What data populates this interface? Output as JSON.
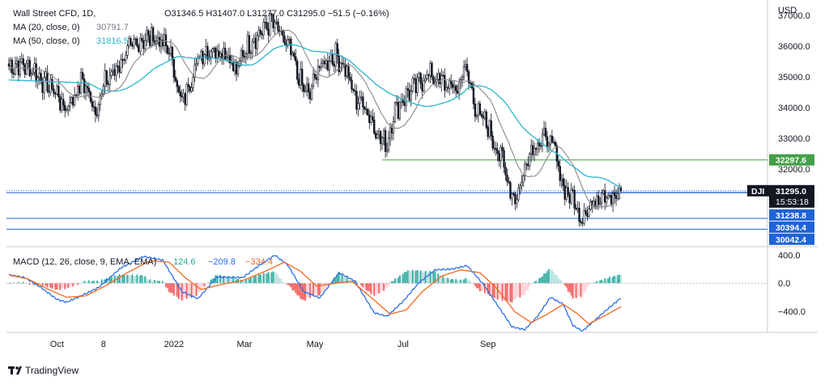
{
  "header": {
    "symbol": "Wall Street CFD, 1D,",
    "ohlc": "O31346.5  H31407.0  L31277.0  C31295.0  −51.5 (−0.16%)",
    "ma20_label": "MA (20, close, 0)",
    "ma20_value": "30791.7",
    "ma50_label": "MA (50, close, 0)",
    "ma50_value": "31816.5"
  },
  "currency": "USD",
  "price_axis": {
    "ticks": [
      37000,
      36000,
      35000,
      34000,
      33000,
      32000
    ],
    "tick_labels": [
      "37000.0",
      "36000.0",
      "35000.0",
      "34000.0",
      "33000.0",
      "32000.0"
    ]
  },
  "macd_axis": {
    "ticks": [
      400,
      0,
      -400
    ],
    "tick_labels": [
      "400.0",
      "0.0",
      "−400.0"
    ]
  },
  "time_axis": {
    "labels": [
      "Oct",
      "8",
      "2022",
      "Mar",
      "May",
      "Jul",
      "Sep"
    ]
  },
  "price_labels": [
    {
      "value": 32297.6,
      "text": "32297.6",
      "color": "#43a047",
      "kind": "level"
    },
    {
      "value": 31238.8,
      "text": "31238.8",
      "color": "#1e63d6",
      "kind": "level"
    },
    {
      "value": 30394.4,
      "text": "30394.4",
      "color": "#1e63d6",
      "kind": "level"
    },
    {
      "value": 30042.4,
      "text": "30042.4",
      "color": "#1e63d6",
      "kind": "level"
    }
  ],
  "current_price": {
    "ticker": "DJI",
    "price": "31295.0",
    "countdown": "15:53:18",
    "value": 31295.0
  },
  "macd_header": {
    "label": "MACD (12, 26, close, 9, EMA, EMA)",
    "hist": "124.6",
    "macd": "−209.8",
    "signal": "−334.4"
  },
  "footer": {
    "brand": "TradingView"
  },
  "colors": {
    "candle": "#131722",
    "ma20": "#8a8a8a",
    "ma50": "#26b6cf",
    "macd_line": "#2a6ee8",
    "signal_line": "#f2691f",
    "hist_pos_strong": "#26a69a",
    "hist_pos_weak": "#b2dfdb",
    "hist_neg_strong": "#ef5350",
    "hist_neg_weak": "#ffcdd2",
    "level_green": "#43a047",
    "level_blue": "#1e63d6"
  },
  "chart_data": {
    "type": "candlestick",
    "title": "Wall Street CFD, 1D",
    "ylabel": "USD",
    "ylim": [
      29500,
      37500
    ],
    "macd_ylim": [
      -700,
      520
    ],
    "series": [
      {
        "name": "MA (20, close, 0)"
      },
      {
        "name": "MA (50, close, 0)"
      },
      {
        "name": "MACD (12, 26, close, 9, EMA, EMA)"
      }
    ],
    "close_path": [
      [
        0,
        35350
      ],
      [
        8,
        35400
      ],
      [
        16,
        35200
      ],
      [
        22,
        34800
      ],
      [
        30,
        34500
      ],
      [
        34,
        33950
      ],
      [
        40,
        34300
      ],
      [
        46,
        34900
      ],
      [
        50,
        34400
      ],
      [
        54,
        33900
      ],
      [
        60,
        34800
      ],
      [
        66,
        35200
      ],
      [
        74,
        35800
      ],
      [
        82,
        36200
      ],
      [
        90,
        36300
      ],
      [
        100,
        35900
      ],
      [
        104,
        35000
      ],
      [
        108,
        34100
      ],
      [
        114,
        35000
      ],
      [
        120,
        35800
      ],
      [
        128,
        35900
      ],
      [
        136,
        35800
      ],
      [
        142,
        35100
      ],
      [
        146,
        35800
      ],
      [
        152,
        36200
      ],
      [
        158,
        36500
      ],
      [
        164,
        36800
      ],
      [
        170,
        36300
      ],
      [
        176,
        35800
      ],
      [
        180,
        35100
      ],
      [
        184,
        34600
      ],
      [
        188,
        34400
      ],
      [
        192,
        35200
      ],
      [
        198,
        35500
      ],
      [
        204,
        35700
      ],
      [
        210,
        35300
      ],
      [
        216,
        34300
      ],
      [
        222,
        34100
      ],
      [
        228,
        33400
      ],
      [
        232,
        33000
      ],
      [
        236,
        32800
      ],
      [
        240,
        33800
      ],
      [
        246,
        34300
      ],
      [
        254,
        34700
      ],
      [
        262,
        35100
      ],
      [
        268,
        34900
      ],
      [
        274,
        34700
      ],
      [
        280,
        34600
      ],
      [
        284,
        35300
      ],
      [
        288,
        34800
      ],
      [
        292,
        33800
      ],
      [
        298,
        33500
      ],
      [
        304,
        32700
      ],
      [
        308,
        32300
      ],
      [
        312,
        31500
      ],
      [
        316,
        31000
      ],
      [
        320,
        31600
      ],
      [
        324,
        32500
      ],
      [
        330,
        32900
      ],
      [
        336,
        33000
      ],
      [
        340,
        32700
      ],
      [
        344,
        31800
      ],
      [
        348,
        31200
      ],
      [
        352,
        31100
      ],
      [
        356,
        30400
      ],
      [
        360,
        30700
      ],
      [
        364,
        30800
      ],
      [
        370,
        31300
      ],
      [
        374,
        31200
      ],
      [
        378,
        31000
      ],
      [
        382,
        31300
      ]
    ],
    "macd_path": [
      [
        0,
        120
      ],
      [
        10,
        80
      ],
      [
        20,
        -60
      ],
      [
        30,
        -230
      ],
      [
        36,
        -270
      ],
      [
        46,
        -170
      ],
      [
        56,
        -60
      ],
      [
        70,
        220
      ],
      [
        84,
        380
      ],
      [
        96,
        330
      ],
      [
        108,
        -120
      ],
      [
        118,
        -220
      ],
      [
        130,
        90
      ],
      [
        146,
        80
      ],
      [
        156,
        250
      ],
      [
        166,
        400
      ],
      [
        174,
        260
      ],
      [
        184,
        -120
      ],
      [
        194,
        -210
      ],
      [
        206,
        150
      ],
      [
        216,
        30
      ],
      [
        228,
        -420
      ],
      [
        236,
        -470
      ],
      [
        246,
        -260
      ],
      [
        256,
        10
      ],
      [
        266,
        190
      ],
      [
        276,
        200
      ],
      [
        286,
        250
      ],
      [
        296,
        -10
      ],
      [
        304,
        -280
      ],
      [
        314,
        -620
      ],
      [
        322,
        -660
      ],
      [
        330,
        -470
      ],
      [
        338,
        -200
      ],
      [
        346,
        -300
      ],
      [
        352,
        -600
      ],
      [
        358,
        -680
      ],
      [
        366,
        -520
      ],
      [
        374,
        -360
      ],
      [
        382,
        -210
      ]
    ],
    "signal_path": [
      [
        0,
        120
      ],
      [
        12,
        60
      ],
      [
        24,
        -80
      ],
      [
        36,
        -200
      ],
      [
        48,
        -180
      ],
      [
        60,
        -40
      ],
      [
        74,
        150
      ],
      [
        88,
        320
      ],
      [
        100,
        300
      ],
      [
        110,
        80
      ],
      [
        120,
        -90
      ],
      [
        132,
        -20
      ],
      [
        146,
        40
      ],
      [
        160,
        170
      ],
      [
        172,
        300
      ],
      [
        182,
        170
      ],
      [
        192,
        -40
      ],
      [
        204,
        0
      ],
      [
        214,
        30
      ],
      [
        226,
        -200
      ],
      [
        238,
        -440
      ],
      [
        248,
        -380
      ],
      [
        258,
        -120
      ],
      [
        270,
        100
      ],
      [
        282,
        190
      ],
      [
        294,
        150
      ],
      [
        304,
        -60
      ],
      [
        316,
        -410
      ],
      [
        326,
        -560
      ],
      [
        336,
        -440
      ],
      [
        346,
        -300
      ],
      [
        354,
        -420
      ],
      [
        362,
        -580
      ],
      [
        372,
        -460
      ],
      [
        382,
        -334
      ]
    ],
    "level_lines": [
      32297.6,
      31295.0,
      31238.8,
      30394.4,
      30042.4
    ],
    "x_axis_labels": [
      "Oct",
      "8",
      "2022",
      "Mar",
      "May",
      "Jul",
      "Sep"
    ]
  }
}
